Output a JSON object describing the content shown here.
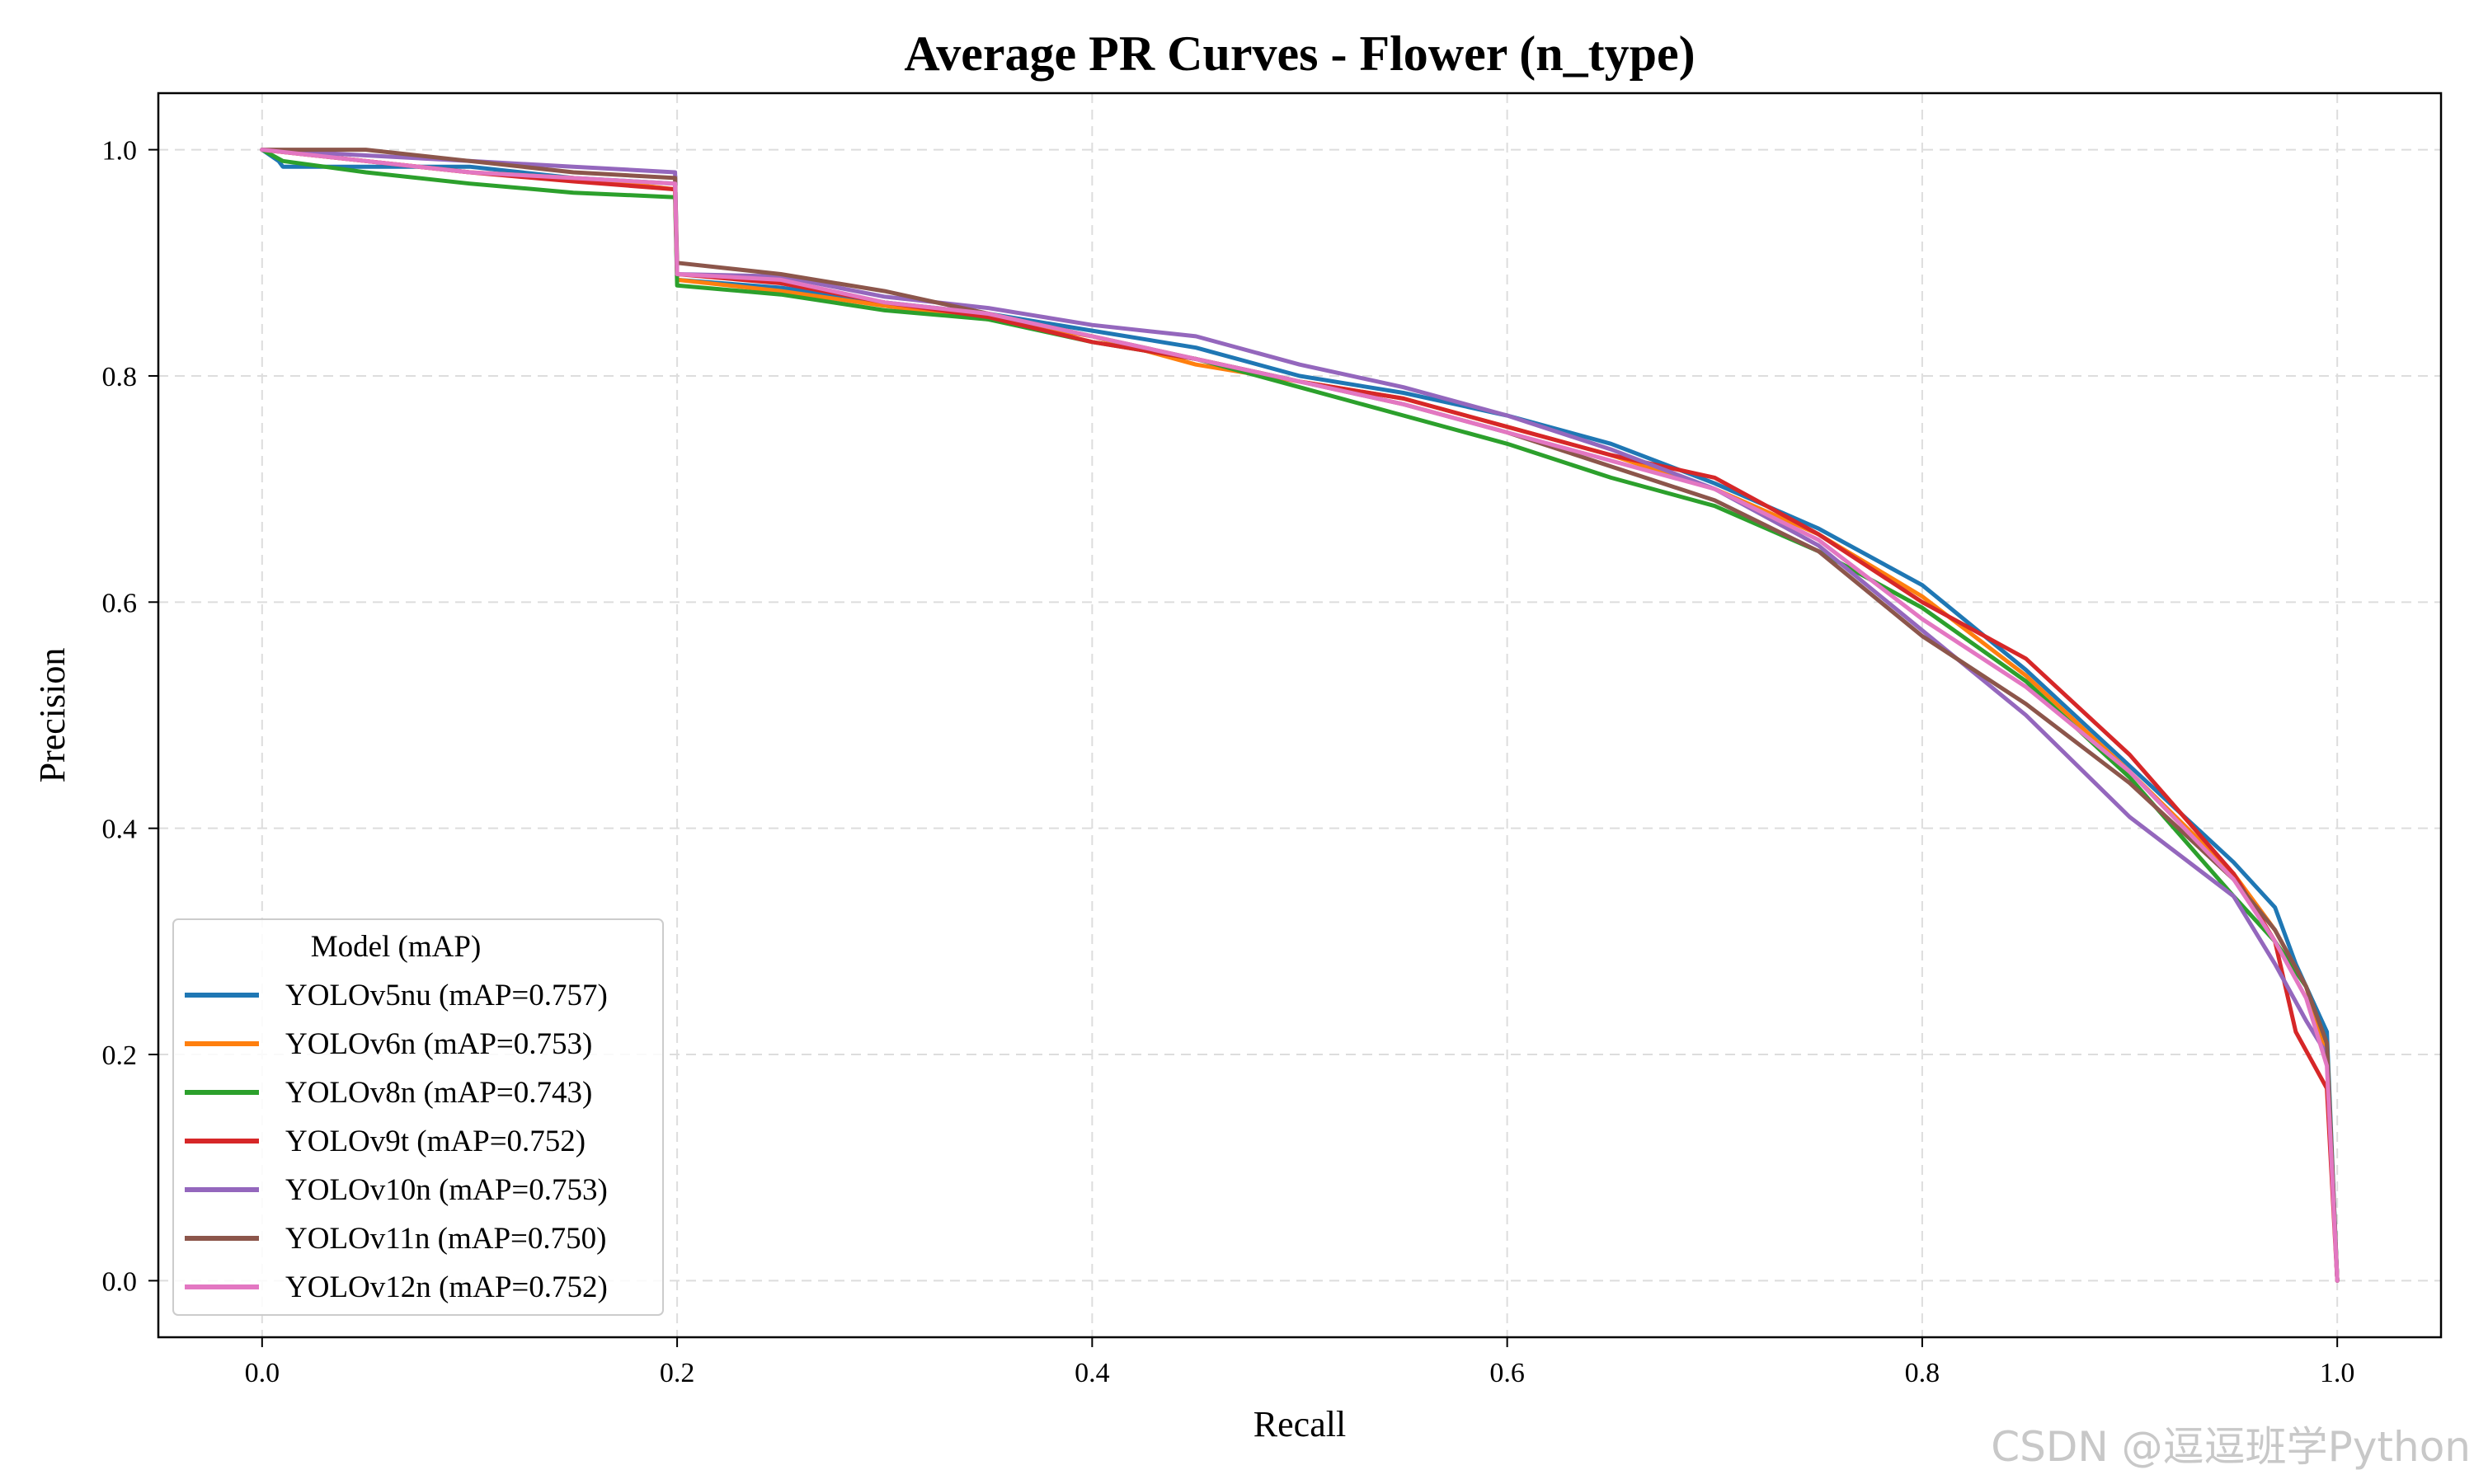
{
  "chart_data": {
    "type": "line",
    "title": "Average PR Curves - Flower (n_type)",
    "xlabel": "Recall",
    "ylabel": "Precision",
    "xlim": [
      -0.05,
      1.05
    ],
    "ylim": [
      -0.05,
      1.05
    ],
    "xticks": [
      0.0,
      0.2,
      0.4,
      0.6,
      0.8,
      1.0
    ],
    "xtick_labels": [
      "0.0",
      "0.2",
      "0.4",
      "0.6",
      "0.8",
      "1.0"
    ],
    "yticks": [
      0.0,
      0.2,
      0.4,
      0.6,
      0.8,
      1.0
    ],
    "ytick_labels": [
      "0.0",
      "0.2",
      "0.4",
      "0.6",
      "0.8",
      "1.0"
    ],
    "grid": true,
    "legend": {
      "title": "Model (mAP)",
      "placement": "lower-left"
    },
    "series": [
      {
        "name": "YOLOv5nu (mAP=0.757)",
        "color": "#1f77b4",
        "points": [
          [
            0,
            1.0
          ],
          [
            0.008,
            0.99
          ],
          [
            0.01,
            0.985
          ],
          [
            0.1,
            0.985
          ],
          [
            0.15,
            0.975
          ],
          [
            0.199,
            0.97
          ],
          [
            0.2,
            0.885
          ],
          [
            0.25,
            0.878
          ],
          [
            0.3,
            0.865
          ],
          [
            0.35,
            0.855
          ],
          [
            0.4,
            0.84
          ],
          [
            0.45,
            0.825
          ],
          [
            0.5,
            0.8
          ],
          [
            0.55,
            0.785
          ],
          [
            0.6,
            0.765
          ],
          [
            0.65,
            0.74
          ],
          [
            0.7,
            0.705
          ],
          [
            0.75,
            0.665
          ],
          [
            0.8,
            0.615
          ],
          [
            0.85,
            0.54
          ],
          [
            0.9,
            0.455
          ],
          [
            0.95,
            0.37
          ],
          [
            0.97,
            0.33
          ],
          [
            0.98,
            0.28
          ],
          [
            0.995,
            0.22
          ],
          [
            1.0,
            0.0
          ]
        ]
      },
      {
        "name": "YOLOv6n (mAP=0.753)",
        "color": "#ff7f0e",
        "points": [
          [
            0,
            1.0
          ],
          [
            0.05,
            0.99
          ],
          [
            0.1,
            0.98
          ],
          [
            0.15,
            0.975
          ],
          [
            0.199,
            0.965
          ],
          [
            0.2,
            0.885
          ],
          [
            0.25,
            0.875
          ],
          [
            0.3,
            0.862
          ],
          [
            0.35,
            0.85
          ],
          [
            0.4,
            0.835
          ],
          [
            0.45,
            0.81
          ],
          [
            0.5,
            0.795
          ],
          [
            0.55,
            0.78
          ],
          [
            0.6,
            0.755
          ],
          [
            0.65,
            0.73
          ],
          [
            0.7,
            0.7
          ],
          [
            0.75,
            0.66
          ],
          [
            0.8,
            0.605
          ],
          [
            0.85,
            0.535
          ],
          [
            0.9,
            0.45
          ],
          [
            0.95,
            0.36
          ],
          [
            0.97,
            0.31
          ],
          [
            0.985,
            0.26
          ],
          [
            0.995,
            0.2
          ],
          [
            1.0,
            0.0
          ]
        ]
      },
      {
        "name": "YOLOv8n (mAP=0.743)",
        "color": "#2ca02c",
        "points": [
          [
            0,
            1.0
          ],
          [
            0.01,
            0.99
          ],
          [
            0.05,
            0.98
          ],
          [
            0.1,
            0.97
          ],
          [
            0.15,
            0.962
          ],
          [
            0.199,
            0.958
          ],
          [
            0.2,
            0.88
          ],
          [
            0.25,
            0.872
          ],
          [
            0.3,
            0.858
          ],
          [
            0.35,
            0.85
          ],
          [
            0.4,
            0.83
          ],
          [
            0.45,
            0.815
          ],
          [
            0.5,
            0.79
          ],
          [
            0.55,
            0.765
          ],
          [
            0.6,
            0.74
          ],
          [
            0.65,
            0.71
          ],
          [
            0.7,
            0.685
          ],
          [
            0.75,
            0.645
          ],
          [
            0.8,
            0.595
          ],
          [
            0.85,
            0.53
          ],
          [
            0.9,
            0.445
          ],
          [
            0.95,
            0.34
          ],
          [
            0.97,
            0.3
          ],
          [
            0.985,
            0.26
          ],
          [
            0.995,
            0.21
          ],
          [
            1.0,
            0.0
          ]
        ]
      },
      {
        "name": "YOLOv9t (mAP=0.752)",
        "color": "#d62728",
        "points": [
          [
            0,
            1.0
          ],
          [
            0.05,
            0.99
          ],
          [
            0.1,
            0.98
          ],
          [
            0.15,
            0.972
          ],
          [
            0.199,
            0.965
          ],
          [
            0.2,
            0.89
          ],
          [
            0.25,
            0.882
          ],
          [
            0.3,
            0.865
          ],
          [
            0.35,
            0.852
          ],
          [
            0.4,
            0.83
          ],
          [
            0.45,
            0.815
          ],
          [
            0.5,
            0.795
          ],
          [
            0.55,
            0.78
          ],
          [
            0.6,
            0.755
          ],
          [
            0.65,
            0.73
          ],
          [
            0.7,
            0.71
          ],
          [
            0.75,
            0.66
          ],
          [
            0.8,
            0.6
          ],
          [
            0.85,
            0.55
          ],
          [
            0.9,
            0.465
          ],
          [
            0.95,
            0.36
          ],
          [
            0.97,
            0.3
          ],
          [
            0.98,
            0.22
          ],
          [
            0.995,
            0.17
          ],
          [
            1.0,
            0.0
          ]
        ]
      },
      {
        "name": "YOLOv10n (mAP=0.753)",
        "color": "#9467bd",
        "points": [
          [
            0,
            1.0
          ],
          [
            0.05,
            0.995
          ],
          [
            0.1,
            0.99
          ],
          [
            0.15,
            0.985
          ],
          [
            0.199,
            0.98
          ],
          [
            0.2,
            0.89
          ],
          [
            0.25,
            0.888
          ],
          [
            0.3,
            0.87
          ],
          [
            0.35,
            0.86
          ],
          [
            0.4,
            0.845
          ],
          [
            0.45,
            0.835
          ],
          [
            0.5,
            0.81
          ],
          [
            0.55,
            0.79
          ],
          [
            0.6,
            0.765
          ],
          [
            0.65,
            0.735
          ],
          [
            0.7,
            0.7
          ],
          [
            0.75,
            0.65
          ],
          [
            0.8,
            0.575
          ],
          [
            0.85,
            0.5
          ],
          [
            0.9,
            0.41
          ],
          [
            0.95,
            0.34
          ],
          [
            0.97,
            0.28
          ],
          [
            0.985,
            0.23
          ],
          [
            0.995,
            0.2
          ],
          [
            1.0,
            0.0
          ]
        ]
      },
      {
        "name": "YOLOv11n (mAP=0.750)",
        "color": "#8c564b",
        "points": [
          [
            0,
            1.0
          ],
          [
            0.05,
            1.0
          ],
          [
            0.1,
            0.99
          ],
          [
            0.15,
            0.98
          ],
          [
            0.199,
            0.975
          ],
          [
            0.2,
            0.9
          ],
          [
            0.25,
            0.89
          ],
          [
            0.3,
            0.875
          ],
          [
            0.35,
            0.855
          ],
          [
            0.4,
            0.835
          ],
          [
            0.45,
            0.815
          ],
          [
            0.5,
            0.795
          ],
          [
            0.55,
            0.775
          ],
          [
            0.6,
            0.75
          ],
          [
            0.65,
            0.72
          ],
          [
            0.7,
            0.69
          ],
          [
            0.75,
            0.645
          ],
          [
            0.8,
            0.57
          ],
          [
            0.85,
            0.51
          ],
          [
            0.9,
            0.44
          ],
          [
            0.95,
            0.355
          ],
          [
            0.97,
            0.31
          ],
          [
            0.985,
            0.26
          ],
          [
            0.995,
            0.21
          ],
          [
            1.0,
            0.0
          ]
        ]
      },
      {
        "name": "YOLOv12n (mAP=0.752)",
        "color": "#e377c2",
        "points": [
          [
            0,
            1.0
          ],
          [
            0.05,
            0.99
          ],
          [
            0.1,
            0.98
          ],
          [
            0.15,
            0.975
          ],
          [
            0.199,
            0.97
          ],
          [
            0.2,
            0.89
          ],
          [
            0.25,
            0.885
          ],
          [
            0.3,
            0.865
          ],
          [
            0.35,
            0.855
          ],
          [
            0.4,
            0.835
          ],
          [
            0.45,
            0.815
          ],
          [
            0.5,
            0.795
          ],
          [
            0.55,
            0.775
          ],
          [
            0.6,
            0.75
          ],
          [
            0.65,
            0.725
          ],
          [
            0.7,
            0.7
          ],
          [
            0.75,
            0.655
          ],
          [
            0.8,
            0.585
          ],
          [
            0.85,
            0.525
          ],
          [
            0.9,
            0.45
          ],
          [
            0.95,
            0.355
          ],
          [
            0.97,
            0.3
          ],
          [
            0.985,
            0.25
          ],
          [
            0.995,
            0.19
          ],
          [
            1.0,
            0.0
          ]
        ]
      }
    ]
  },
  "watermark": "CSDN @逗逗班学Python"
}
